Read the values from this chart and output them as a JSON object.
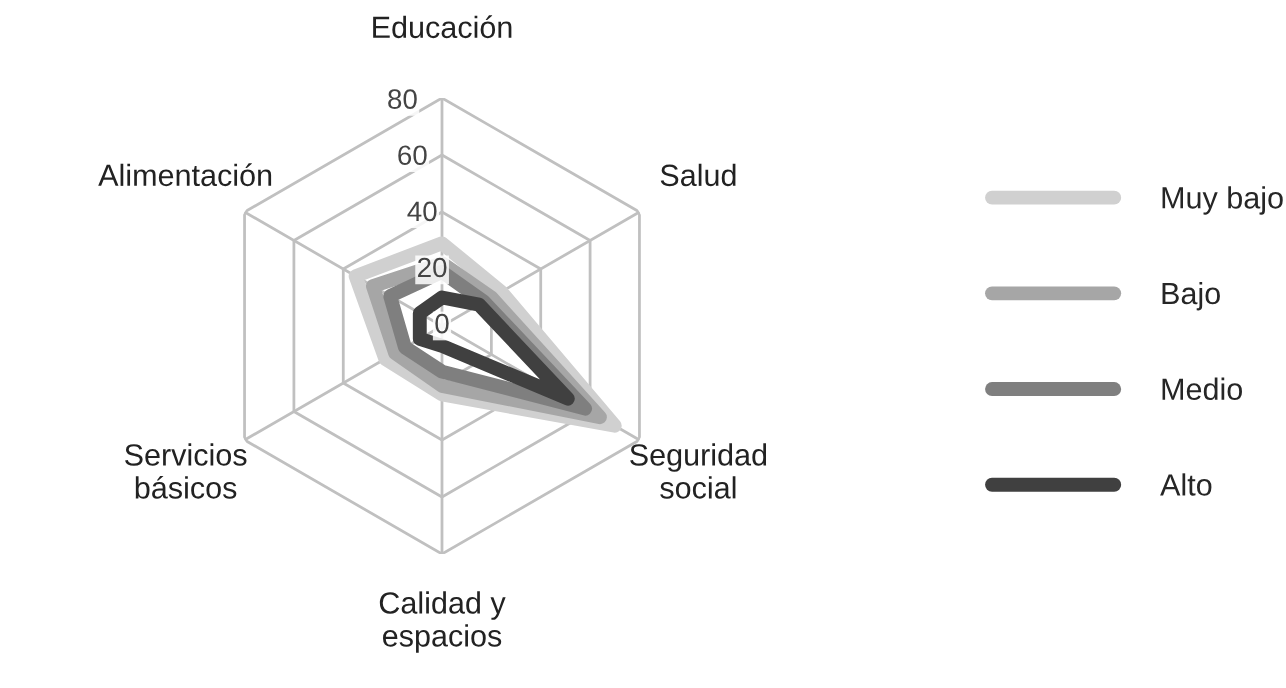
{
  "chart_data": {
    "type": "radar",
    "categories": [
      "Educación",
      "Salud",
      "Seguridad\nsocial",
      "Calidad y\nespacios",
      "Servicios\nbásicos",
      "Alimentación"
    ],
    "series": [
      {
        "name": "Muy bajo",
        "color": "#d0d0d0",
        "values": [
          29,
          24,
          70,
          24,
          23,
          35
        ]
      },
      {
        "name": "Bajo",
        "color": "#a6a6a6",
        "values": [
          22,
          20,
          64,
          21,
          19,
          28
        ]
      },
      {
        "name": "Medio",
        "color": "#7f7f7f",
        "values": [
          19,
          17,
          58,
          16,
          15,
          21
        ]
      },
      {
        "name": "Alto",
        "color": "#404040",
        "values": [
          10,
          15,
          51,
          7,
          9,
          9
        ]
      }
    ],
    "ylim": [
      0,
      80
    ],
    "yticks": [
      0,
      20,
      40,
      60,
      80
    ],
    "grid": true,
    "legend": "right"
  }
}
